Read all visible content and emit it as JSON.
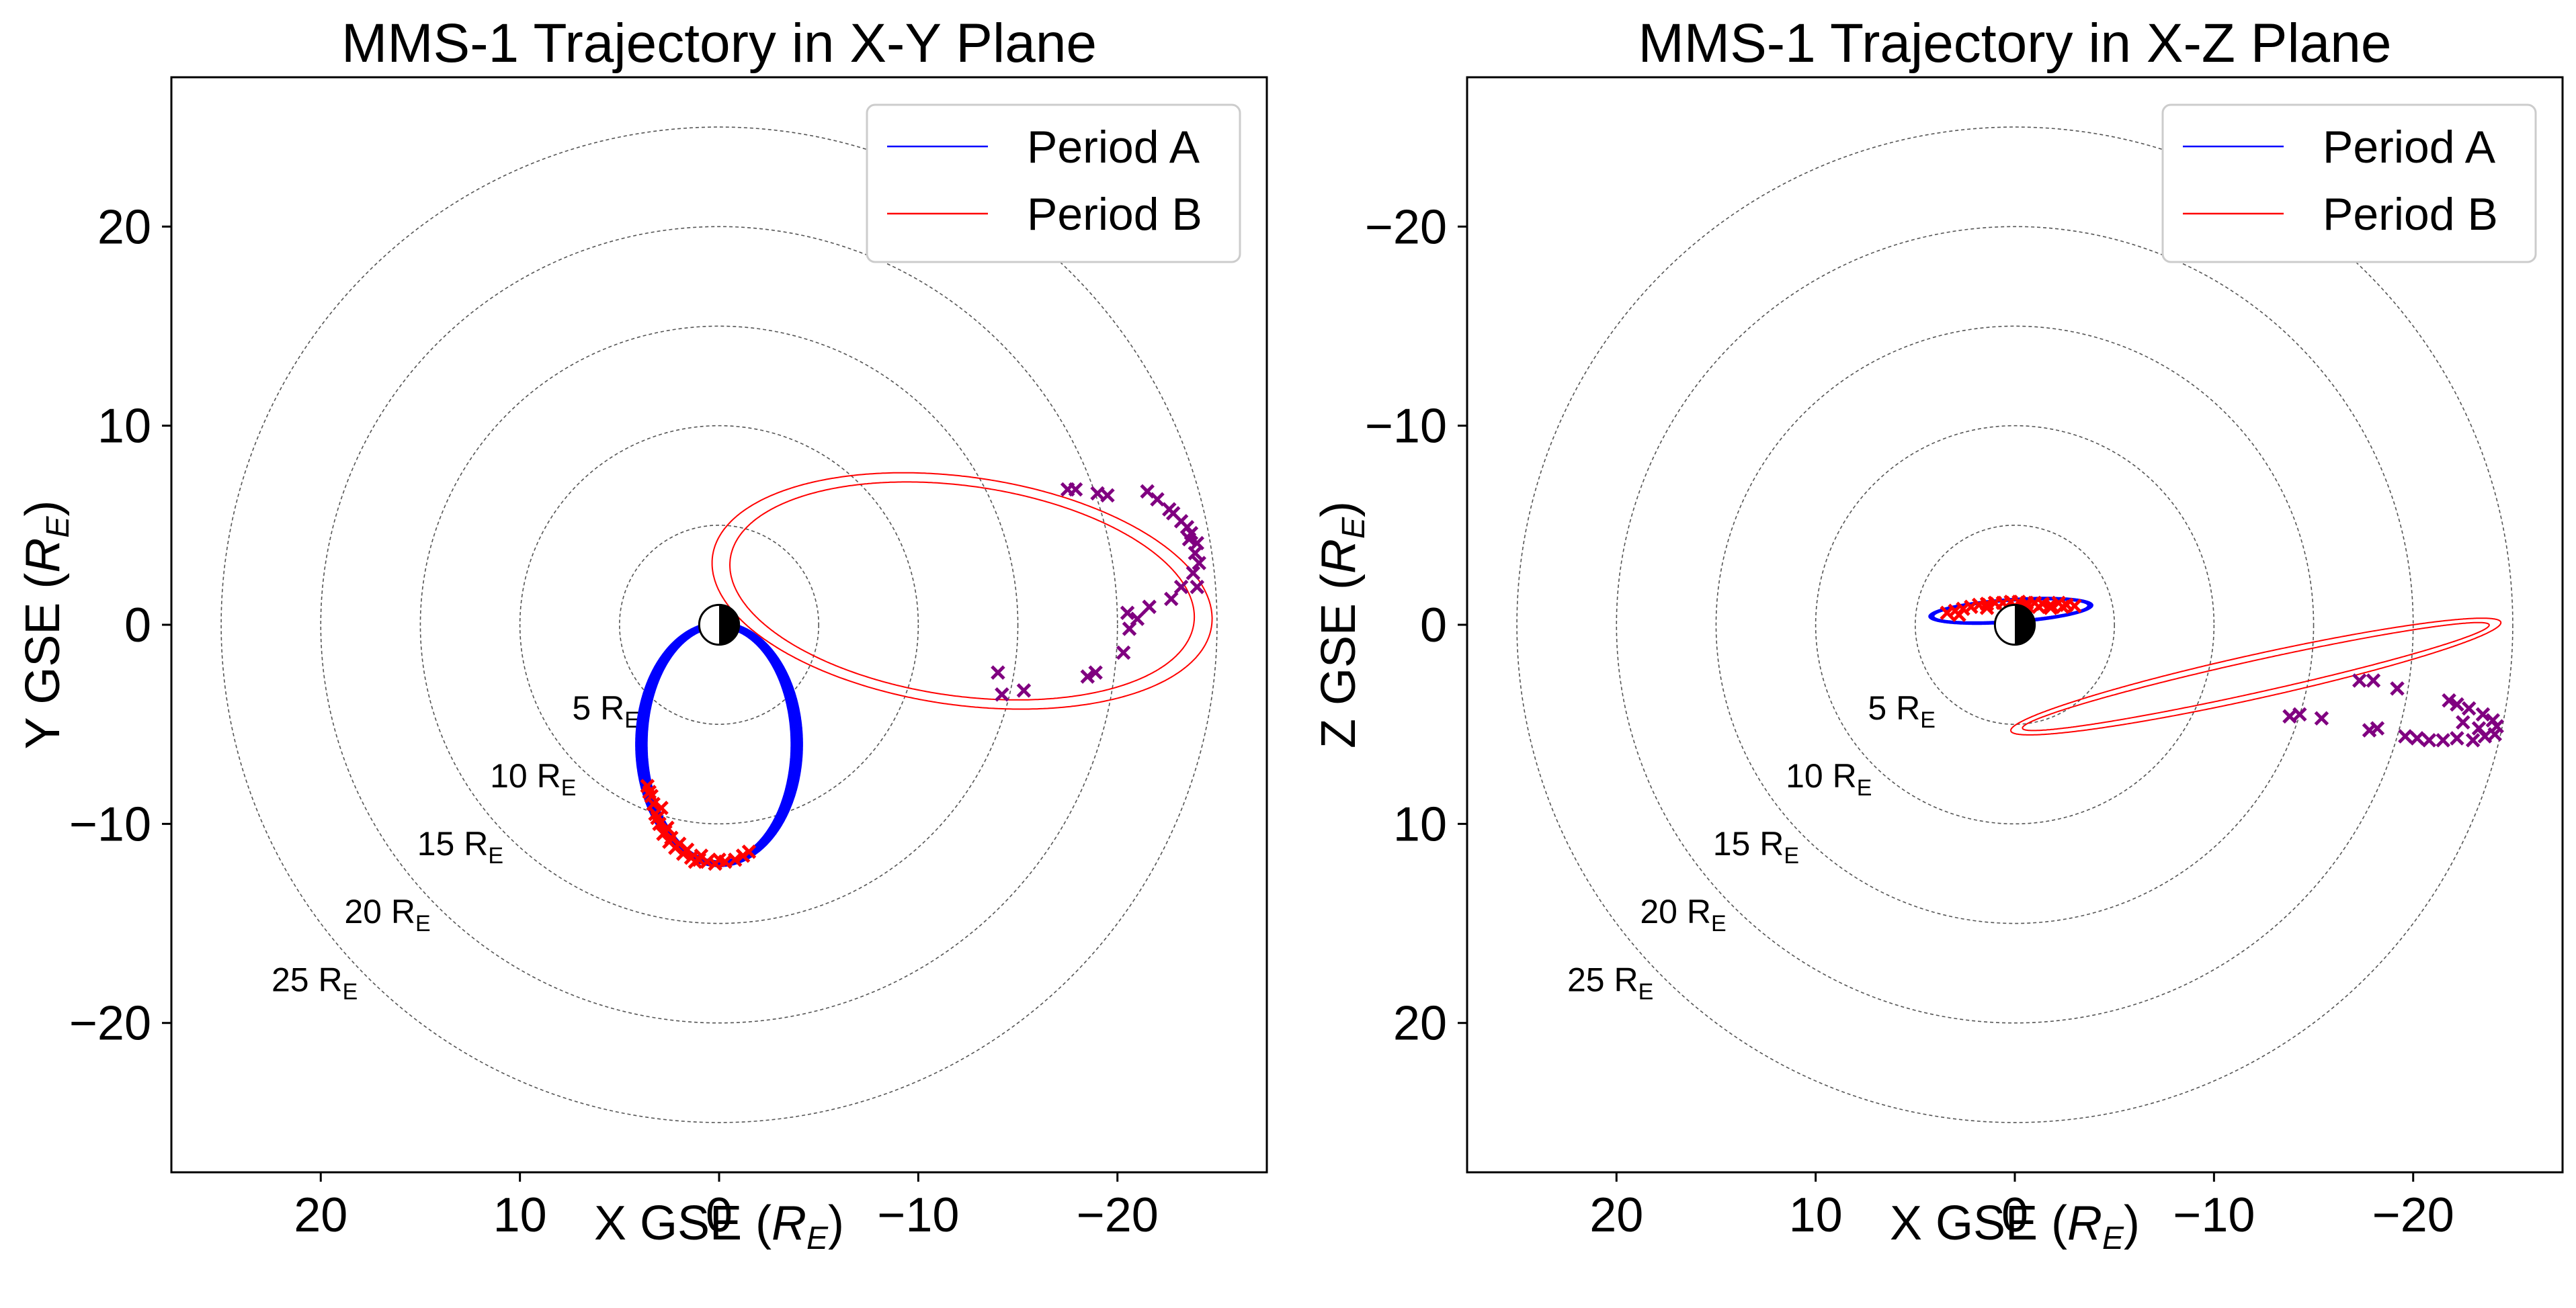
{
  "chart_data": [
    {
      "type": "scatter",
      "title": "MMS-1 Trajectory in X-Y Plane",
      "xlabel": "X GSE",
      "ylabel": "Y GSE",
      "unit_main": "R",
      "unit_sub": "E",
      "xlim": [
        27.5,
        -27.5
      ],
      "ylim": [
        27.5,
        -27.5
      ],
      "xticks": [
        20,
        10,
        0,
        -10,
        -20
      ],
      "xtick_labels": [
        "20",
        "10",
        "0",
        "−10",
        "−20"
      ],
      "yticks": [
        -20,
        -10,
        0,
        10,
        20
      ],
      "ytick_labels": [
        "−20",
        "−10",
        "0",
        "10",
        "20"
      ],
      "rings": [
        5,
        10,
        15,
        20,
        25
      ],
      "ring_labels": [
        "5 R",
        "10 R",
        "15 R",
        "20 R",
        "25 R"
      ],
      "legend": {
        "position": "top-right",
        "entries": [
          "Period A",
          "Period B"
        ]
      },
      "series": [
        {
          "name": "Period A",
          "color": "#0000ff",
          "orbit": {
            "cx": 0.0,
            "cy": -6.0,
            "a": 3.9,
            "b": 6.0,
            "loops": 14,
            "jitter": 0.28
          }
        },
        {
          "name": "Period B",
          "color": "#ff0000",
          "orbit": {
            "cx": -12.2,
            "cy": 1.7,
            "a": 12.2,
            "b": 5.5,
            "tilt_deg": 8,
            "loops": 2,
            "jitter": 0.45
          }
        }
      ],
      "markers": [
        {
          "name": "Period A crossings",
          "color": "#ff0000",
          "symbol": "x",
          "points": [
            [
              3.2,
              -9.5
            ],
            [
              3.0,
              -10.0
            ],
            [
              2.8,
              -10.5
            ],
            [
              2.5,
              -10.9
            ],
            [
              2.2,
              -11.2
            ],
            [
              1.8,
              -11.5
            ],
            [
              1.4,
              -11.7
            ],
            [
              1.0,
              -11.8
            ],
            [
              0.6,
              -11.9
            ],
            [
              0.2,
              -12.0
            ],
            [
              -0.3,
              -11.9
            ],
            [
              -0.8,
              -11.8
            ],
            [
              -1.2,
              -11.6
            ],
            [
              -1.5,
              -11.4
            ],
            [
              3.4,
              -8.6
            ],
            [
              3.6,
              -8.1
            ],
            [
              2.9,
              -9.2
            ],
            [
              2.6,
              -10.2
            ],
            [
              2.0,
              -11.0
            ],
            [
              3.3,
              -9.0
            ],
            [
              2.4,
              -10.7
            ],
            [
              1.6,
              -11.3
            ],
            [
              0.9,
              -11.6
            ],
            [
              3.5,
              -8.4
            ],
            [
              3.1,
              -9.7
            ],
            [
              2.7,
              -10.4
            ],
            [
              1.2,
              -11.9
            ],
            [
              0.0,
              -11.8
            ]
          ]
        },
        {
          "name": "Period B crossings",
          "color": "#800080",
          "symbol": "x",
          "points": [
            [
              -14.2,
              -3.5
            ],
            [
              -15.3,
              -3.3
            ],
            [
              -14.0,
              -2.4
            ],
            [
              -18.5,
              -2.6
            ],
            [
              -18.9,
              -2.4
            ],
            [
              -20.3,
              -1.4
            ],
            [
              -20.6,
              -0.2
            ],
            [
              -21.0,
              0.3
            ],
            [
              -20.5,
              0.6
            ],
            [
              -21.6,
              0.9
            ],
            [
              -22.7,
              1.3
            ],
            [
              -23.2,
              1.9
            ],
            [
              -23.8,
              2.6
            ],
            [
              -24.1,
              3.1
            ],
            [
              -23.9,
              3.6
            ],
            [
              -24.0,
              4.1
            ],
            [
              -23.7,
              4.6
            ],
            [
              -23.2,
              5.2
            ],
            [
              -22.6,
              5.8
            ],
            [
              -22.0,
              6.3
            ],
            [
              -21.5,
              6.7
            ],
            [
              -19.5,
              6.5
            ],
            [
              -19.0,
              6.6
            ],
            [
              -17.5,
              6.8
            ],
            [
              -17.9,
              6.8
            ],
            [
              -22.8,
              5.6
            ],
            [
              -23.5,
              4.9
            ],
            [
              -24.0,
              1.9
            ],
            [
              -23.6,
              4.3
            ]
          ]
        }
      ]
    },
    {
      "type": "scatter",
      "title": "MMS-1 Trajectory in X-Z Plane",
      "xlabel": "X GSE",
      "ylabel": "Z GSE",
      "unit_main": "R",
      "unit_sub": "E",
      "xlim": [
        27.5,
        -27.5
      ],
      "ylim": [
        -27.5,
        27.5
      ],
      "xticks": [
        20,
        10,
        0,
        -10,
        -20
      ],
      "xtick_labels": [
        "20",
        "10",
        "0",
        "−10",
        "−20"
      ],
      "yticks": [
        20,
        10,
        0,
        -10,
        -20
      ],
      "ytick_labels": [
        "20",
        "10",
        "0",
        "−10",
        "−20"
      ],
      "rings": [
        5,
        10,
        15,
        20,
        25
      ],
      "ring_labels": [
        "5 R",
        "10 R",
        "15 R",
        "20 R",
        "25 R"
      ],
      "legend": {
        "position": "top-right",
        "entries": [
          "Period A",
          "Period B"
        ]
      },
      "series": [
        {
          "name": "Period A",
          "color": "#0000ff",
          "orbit": {
            "cx": 0.2,
            "cy": -0.7,
            "a": 4.0,
            "b": 0.55,
            "tilt_deg": 4,
            "loops": 10,
            "jitter": 0.12
          }
        },
        {
          "name": "Period B",
          "color": "#ff0000",
          "orbit": {
            "cx": -12.1,
            "cy": 2.6,
            "a": 12.3,
            "b": 0.95,
            "tilt_deg": 12.5,
            "loops": 2,
            "jitter": 0.3
          }
        }
      ],
      "markers": [
        {
          "name": "Period A crossings",
          "color": "#ff0000",
          "symbol": "x",
          "points": [
            [
              3.4,
              -0.6
            ],
            [
              3.0,
              -0.7
            ],
            [
              2.6,
              -0.8
            ],
            [
              2.2,
              -0.9
            ],
            [
              1.8,
              -1.0
            ],
            [
              1.4,
              -1.05
            ],
            [
              1.0,
              -1.1
            ],
            [
              0.6,
              -1.1
            ],
            [
              0.2,
              -1.15
            ],
            [
              -0.2,
              -1.15
            ],
            [
              -0.6,
              -1.1
            ],
            [
              -1.0,
              -1.1
            ],
            [
              -1.4,
              -1.05
            ],
            [
              -1.8,
              -1.0
            ],
            [
              -2.2,
              -1.1
            ],
            [
              -2.6,
              -1.0
            ],
            [
              -3.0,
              -0.95
            ],
            [
              -0.6,
              -0.95
            ],
            [
              -1.2,
              -0.9
            ],
            [
              -1.8,
              -0.85
            ],
            [
              -2.4,
              -0.9
            ],
            [
              2.8,
              -0.5
            ],
            [
              1.4,
              -0.85
            ]
          ]
        },
        {
          "name": "Period B crossings",
          "color": "#800080",
          "symbol": "x",
          "points": [
            [
              -13.8,
              4.6
            ],
            [
              -14.3,
              4.5
            ],
            [
              -15.4,
              4.7
            ],
            [
              -17.8,
              5.3
            ],
            [
              -18.2,
              5.2
            ],
            [
              -19.6,
              5.6
            ],
            [
              -20.2,
              5.7
            ],
            [
              -20.8,
              5.8
            ],
            [
              -21.5,
              5.8
            ],
            [
              -22.2,
              5.7
            ],
            [
              -23.0,
              5.8
            ],
            [
              -23.6,
              5.6
            ],
            [
              -24.1,
              5.5
            ],
            [
              -24.2,
              5.1
            ],
            [
              -24.0,
              4.8
            ],
            [
              -23.5,
              4.5
            ],
            [
              -22.8,
              4.2
            ],
            [
              -22.2,
              4.0
            ],
            [
              -21.8,
              3.8
            ],
            [
              -17.3,
              2.8
            ],
            [
              -18.0,
              2.8
            ],
            [
              -19.2,
              3.2
            ],
            [
              -22.5,
              4.9
            ],
            [
              -23.3,
              5.2
            ]
          ]
        }
      ]
    }
  ]
}
